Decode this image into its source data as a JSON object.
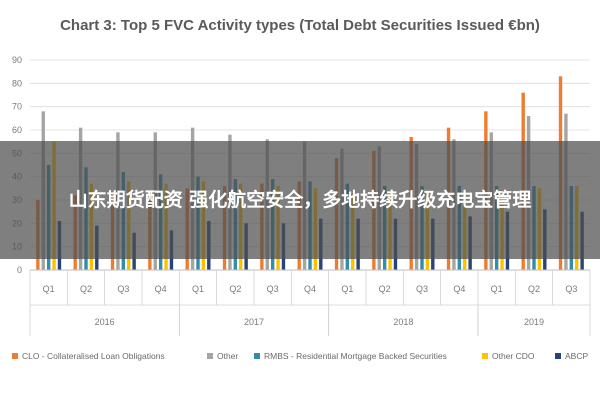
{
  "chart_data": {
    "type": "bar",
    "title": "Chart 3: Top 5 FVC Activity types (Total Debt Securities Issued €bn)",
    "xlabel": "",
    "ylabel": "",
    "ylim": [
      0,
      90
    ],
    "yticks": [
      0,
      10,
      20,
      30,
      40,
      50,
      60,
      70,
      80,
      90
    ],
    "grid": true,
    "legend_position": "bottom",
    "quarters": [
      "Q1",
      "Q2",
      "Q3",
      "Q4",
      "Q1",
      "Q2",
      "Q3",
      "Q4",
      "Q1",
      "Q2",
      "Q3",
      "Q4",
      "Q1",
      "Q2",
      "Q3"
    ],
    "years": [
      {
        "label": "2016",
        "start": 0,
        "count": 4
      },
      {
        "label": "2017",
        "start": 4,
        "count": 4
      },
      {
        "label": "2018",
        "start": 8,
        "count": 4
      },
      {
        "label": "2019",
        "start": 12,
        "count": 3
      }
    ],
    "series": [
      {
        "name": "CLO - Collateralised Loan Obligations",
        "color": "#ED7D31",
        "values": [
          30,
          32,
          33,
          34,
          35,
          36,
          37,
          38,
          48,
          51,
          57,
          61,
          68,
          76,
          83
        ]
      },
      {
        "name": "Other",
        "color": "#A5A5A5",
        "values": [
          68,
          61,
          59,
          59,
          61,
          58,
          56,
          55,
          52,
          53,
          54,
          56,
          59,
          66,
          67
        ]
      },
      {
        "name": "RMBS - Residential Mortgage Backed Securities",
        "color": "#2F8FA8",
        "values": [
          45,
          44,
          42,
          41,
          40,
          39,
          39,
          38,
          37,
          36,
          36,
          36,
          36,
          36,
          36
        ]
      },
      {
        "name": "Other CDO",
        "color": "#FFC000",
        "values": [
          55,
          37,
          38,
          37,
          38,
          37,
          36,
          35,
          33,
          33,
          33,
          34,
          34,
          35,
          36
        ]
      },
      {
        "name": "ABCP",
        "color": "#264478",
        "values": [
          21,
          19,
          16,
          17,
          21,
          20,
          20,
          22,
          22,
          22,
          22,
          23,
          25,
          26,
          25
        ]
      }
    ]
  },
  "overlay": {
    "text": "山东期货配资 强化航空安全，多地持续升级充电宝管理"
  }
}
